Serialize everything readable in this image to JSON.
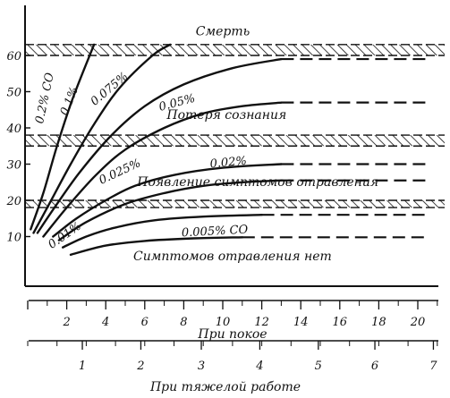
{
  "chart_data": {
    "type": "line",
    "title": "",
    "xlabel_rest": "При покое",
    "xlabel_work": "При тяжелой работе",
    "ylabel": "",
    "xlim_rest": [
      0,
      21
    ],
    "ylim": [
      0,
      68
    ],
    "y_ticks": [
      10,
      20,
      30,
      40,
      50,
      60
    ],
    "x_rest_ticks": [
      2,
      4,
      6,
      8,
      10,
      12,
      14,
      16,
      18,
      20
    ],
    "x_work_ticks": [
      1,
      2,
      3,
      4,
      5,
      6,
      7
    ],
    "x_work_equiv_rest": [
      2.8,
      5.8,
      8.9,
      11.9,
      14.9,
      17.8,
      20.8
    ],
    "hatched_bands": [
      [
        18,
        20
      ],
      [
        35,
        38
      ],
      [
        60,
        63
      ]
    ],
    "zones": [
      {
        "label": "Смерть",
        "x": 10.0,
        "y": 65.5
      },
      {
        "label": "Потеря сознания",
        "x": 10.2,
        "y": 42.5
      },
      {
        "label": "Появление симптомов отравления",
        "x": 11.8,
        "y": 24.0
      },
      {
        "label": "Симптомов отравления нет",
        "x": 10.5,
        "y": 3.5
      }
    ],
    "series": [
      {
        "name": "0.2% CO",
        "label_x": 1.05,
        "label_y": 48,
        "label_rot": -78,
        "points": [
          [
            0.15,
            12
          ],
          [
            0.8,
            22
          ],
          [
            1.5,
            35
          ],
          [
            2.3,
            48
          ],
          [
            3.4,
            63
          ]
        ],
        "dashed_from": null
      },
      {
        "name": "0.1%",
        "label_x": 2.3,
        "label_y": 47,
        "label_rot": -68,
        "points": [
          [
            0.3,
            11
          ],
          [
            1.2,
            20
          ],
          [
            2.2,
            30
          ],
          [
            3.4,
            41
          ],
          [
            4.7,
            51
          ],
          [
            6.4,
            60
          ],
          [
            7.3,
            63
          ]
        ],
        "dashed_from": null
      },
      {
        "name": "0.075%",
        "label_x": 4.3,
        "label_y": 50,
        "label_rot": -40,
        "points": [
          [
            0.5,
            11
          ],
          [
            1.5,
            19
          ],
          [
            2.7,
            28
          ],
          [
            4.3,
            38
          ],
          [
            6.0,
            46
          ],
          [
            8.0,
            52
          ],
          [
            10.5,
            56.5
          ],
          [
            13.0,
            59
          ],
          [
            16.0,
            60
          ],
          [
            20.5,
            60
          ]
        ],
        "dashed_from": 13.0
      },
      {
        "name": "0.05%",
        "label_x": 7.7,
        "label_y": 46,
        "label_rot": -15,
        "points": [
          [
            0.8,
            10
          ],
          [
            2.0,
            18
          ],
          [
            3.5,
            27
          ],
          [
            5.0,
            34
          ],
          [
            7.0,
            40
          ],
          [
            9.0,
            44
          ],
          [
            11.0,
            46
          ],
          [
            13.0,
            47
          ],
          [
            16.0,
            47
          ],
          [
            20.5,
            47
          ]
        ],
        "dashed_from": 13.0
      },
      {
        "name": "0.025%",
        "label_x": 4.8,
        "label_y": 27,
        "label_rot": -25,
        "points": [
          [
            1.3,
            10
          ],
          [
            2.5,
            15
          ],
          [
            4.0,
            20
          ],
          [
            5.5,
            24
          ],
          [
            7.5,
            27
          ],
          [
            10.0,
            29
          ],
          [
            13.0,
            30
          ],
          [
            16.0,
            30.5
          ],
          [
            20.5,
            30.5
          ]
        ],
        "dashed_from": 13.0
      },
      {
        "name": "0.02%",
        "label_x": 10.3,
        "label_y": 29.5,
        "label_rot": -5,
        "points": [
          [
            1.6,
            9
          ],
          [
            3.0,
            14
          ],
          [
            5.0,
            19
          ],
          [
            7.0,
            22
          ],
          [
            9.0,
            24
          ],
          [
            11.0,
            25
          ],
          [
            13.0,
            25.5
          ],
          [
            16.0,
            26
          ],
          [
            20.5,
            26
          ]
        ],
        "dashed_from": 13.0
      },
      {
        "name": "0.01%",
        "label_x": 2.0,
        "label_y": 9.5,
        "label_rot": -35,
        "points": [
          [
            1.8,
            7
          ],
          [
            3.0,
            10
          ],
          [
            4.5,
            12.5
          ],
          [
            6.5,
            14.5
          ],
          [
            9.0,
            15.5
          ],
          [
            12.0,
            16
          ],
          [
            14.0,
            16
          ],
          [
            20.5,
            16
          ]
        ],
        "dashed_from": 12.6
      },
      {
        "name": "0.005% CO",
        "label_x": 9.6,
        "label_y": 10.5,
        "label_rot": -3,
        "points": [
          [
            2.2,
            5
          ],
          [
            4.0,
            7.5
          ],
          [
            6.0,
            8.8
          ],
          [
            8.5,
            9.5
          ],
          [
            11.0,
            9.8
          ],
          [
            12.5,
            10
          ],
          [
            20.5,
            10
          ]
        ],
        "dashed_from": 12.4
      }
    ]
  }
}
